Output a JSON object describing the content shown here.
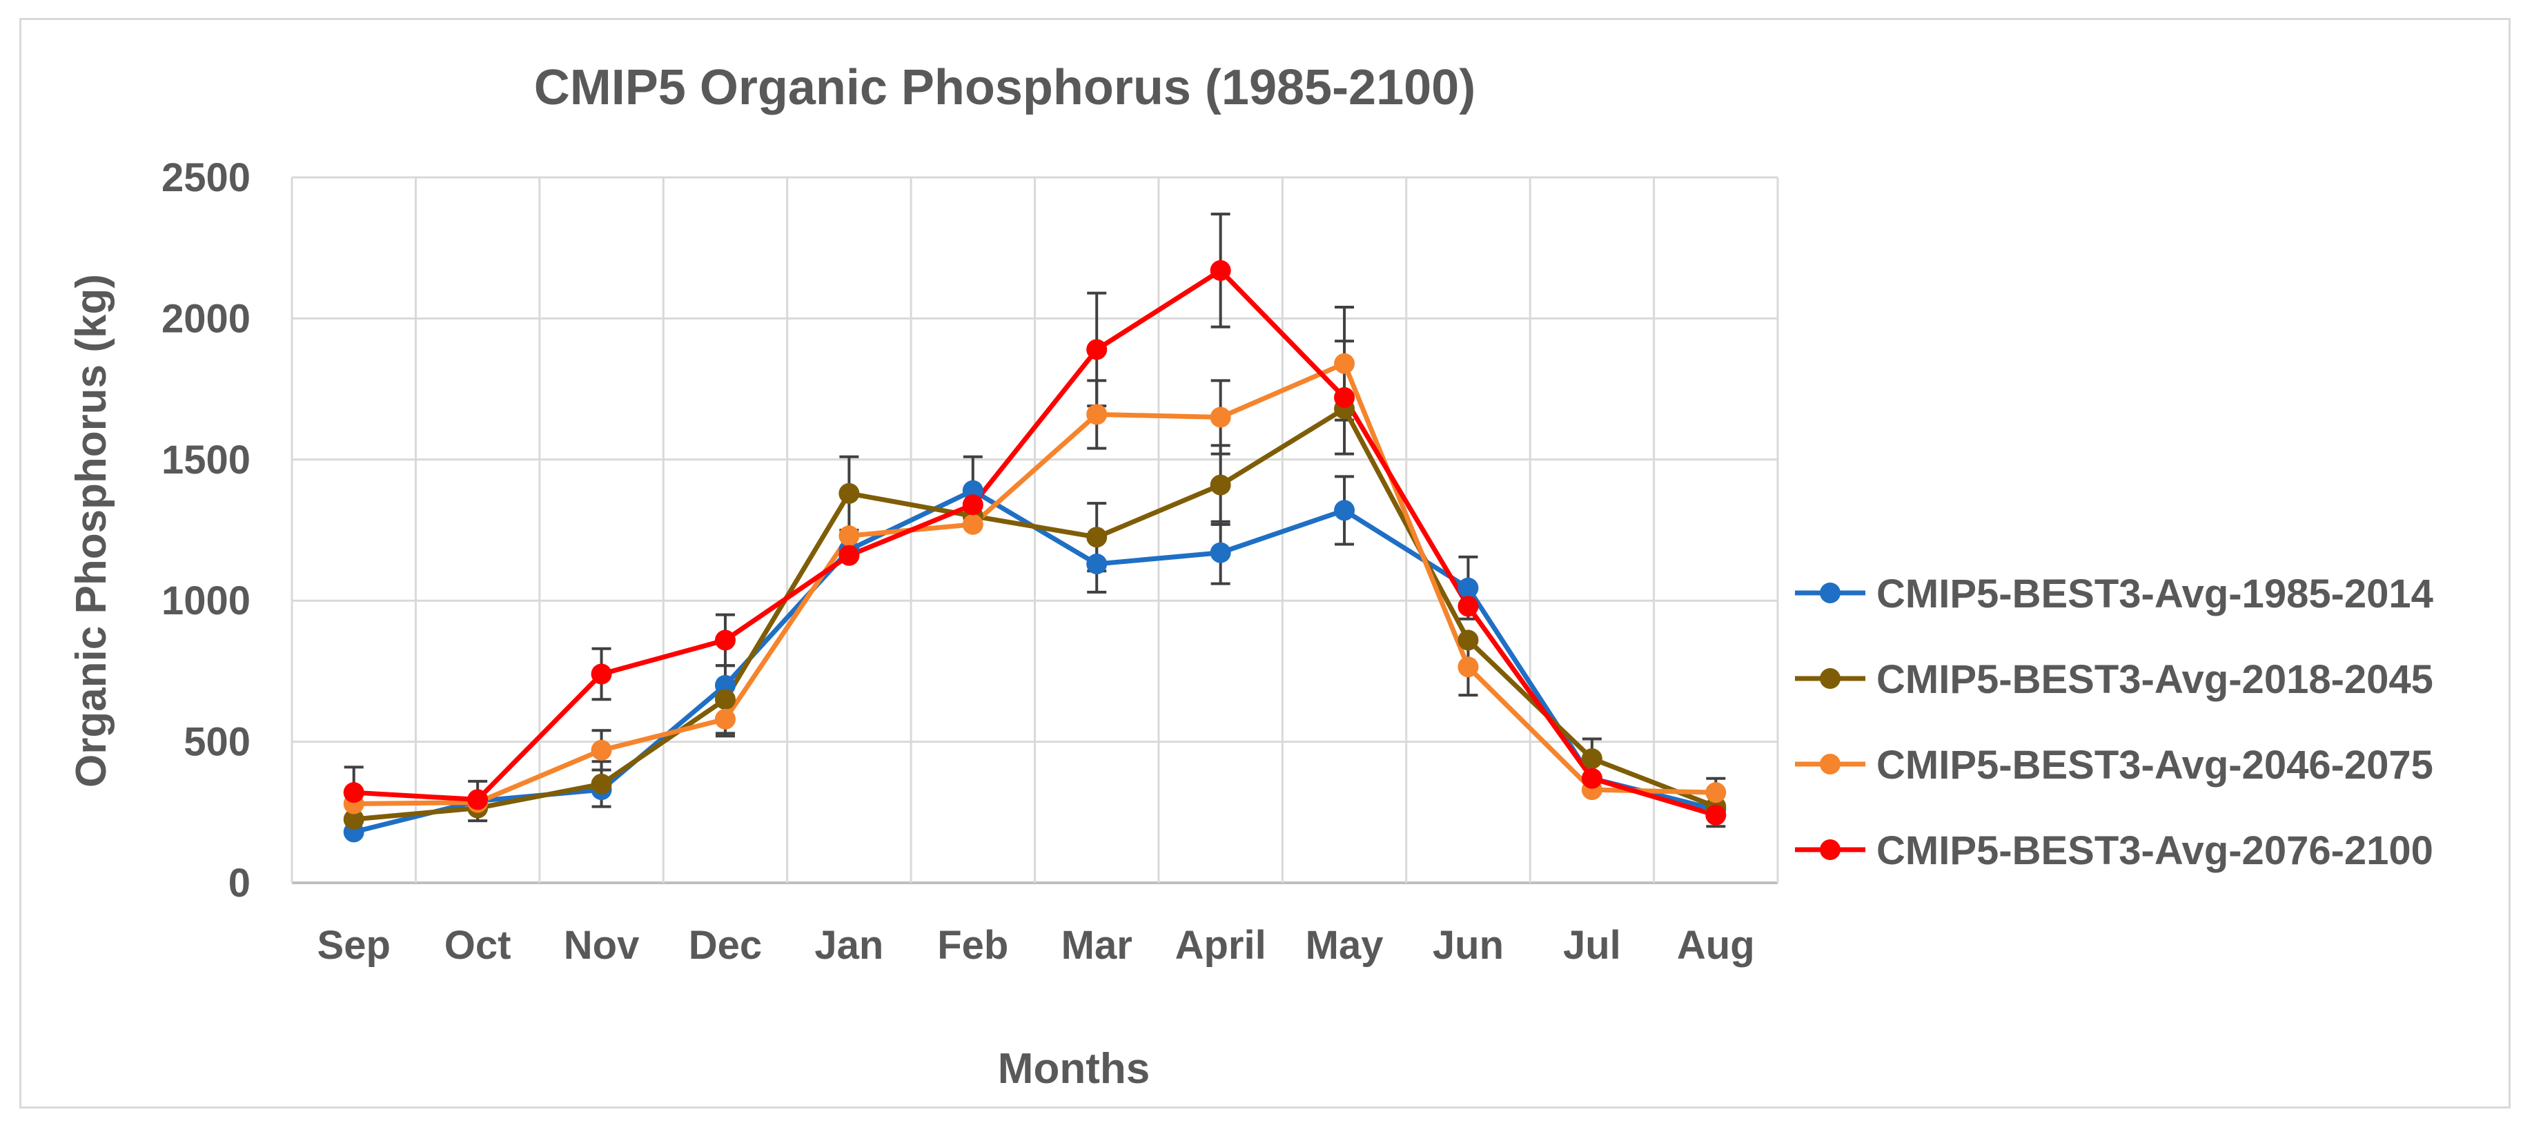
{
  "chart_data": {
    "type": "line",
    "title": "CMIP5 Organic Phosphorus (1985-2100)",
    "xlabel": "Months",
    "ylabel": "Organic Phosphorus (kg)",
    "categories": [
      "Sep",
      "Oct",
      "Nov",
      "Dec",
      "Jan",
      "Feb",
      "Mar",
      "April",
      "May",
      "Jun",
      "Jul",
      "Aug"
    ],
    "ylim": [
      0,
      2500
    ],
    "yticks": [
      0,
      500,
      1000,
      1500,
      2000,
      2500
    ],
    "grid": true,
    "legend_position": "right",
    "error_bars": true,
    "series": [
      {
        "name": "CMIP5-BEST3-Avg-1985-2014",
        "color": "#1f6fc5",
        "values": [
          180,
          290,
          330,
          700,
          1180,
          1390,
          1130,
          1170,
          1320,
          1045,
          370,
          260
        ],
        "errors": [
          0,
          70,
          0,
          0,
          0,
          120,
          100,
          110,
          120,
          110,
          0,
          0
        ]
      },
      {
        "name": "CMIP5-BEST3-Avg-2018-2045",
        "color": "#7f5d07",
        "values": [
          225,
          265,
          350,
          650,
          1380,
          1300,
          1225,
          1410,
          1680,
          860,
          440,
          270
        ],
        "errors": [
          0,
          0,
          80,
          120,
          130,
          0,
          120,
          140,
          0,
          0,
          70,
          0
        ]
      },
      {
        "name": "CMIP5-BEST3-Avg-2046-2075",
        "color": "#f5842c",
        "values": [
          280,
          285,
          470,
          580,
          1230,
          1270,
          1660,
          1650,
          1840,
          765,
          330,
          320
        ],
        "errors": [
          0,
          0,
          70,
          60,
          0,
          0,
          120,
          130,
          200,
          100,
          0,
          50
        ]
      },
      {
        "name": "CMIP5-BEST3-Avg-2076-2100",
        "color": "#ff0000",
        "values": [
          320,
          295,
          740,
          860,
          1160,
          1340,
          1890,
          2170,
          1720,
          980,
          370,
          240
        ],
        "errors": [
          90,
          0,
          90,
          90,
          0,
          0,
          200,
          200,
          200,
          0,
          0,
          40
        ]
      }
    ]
  }
}
